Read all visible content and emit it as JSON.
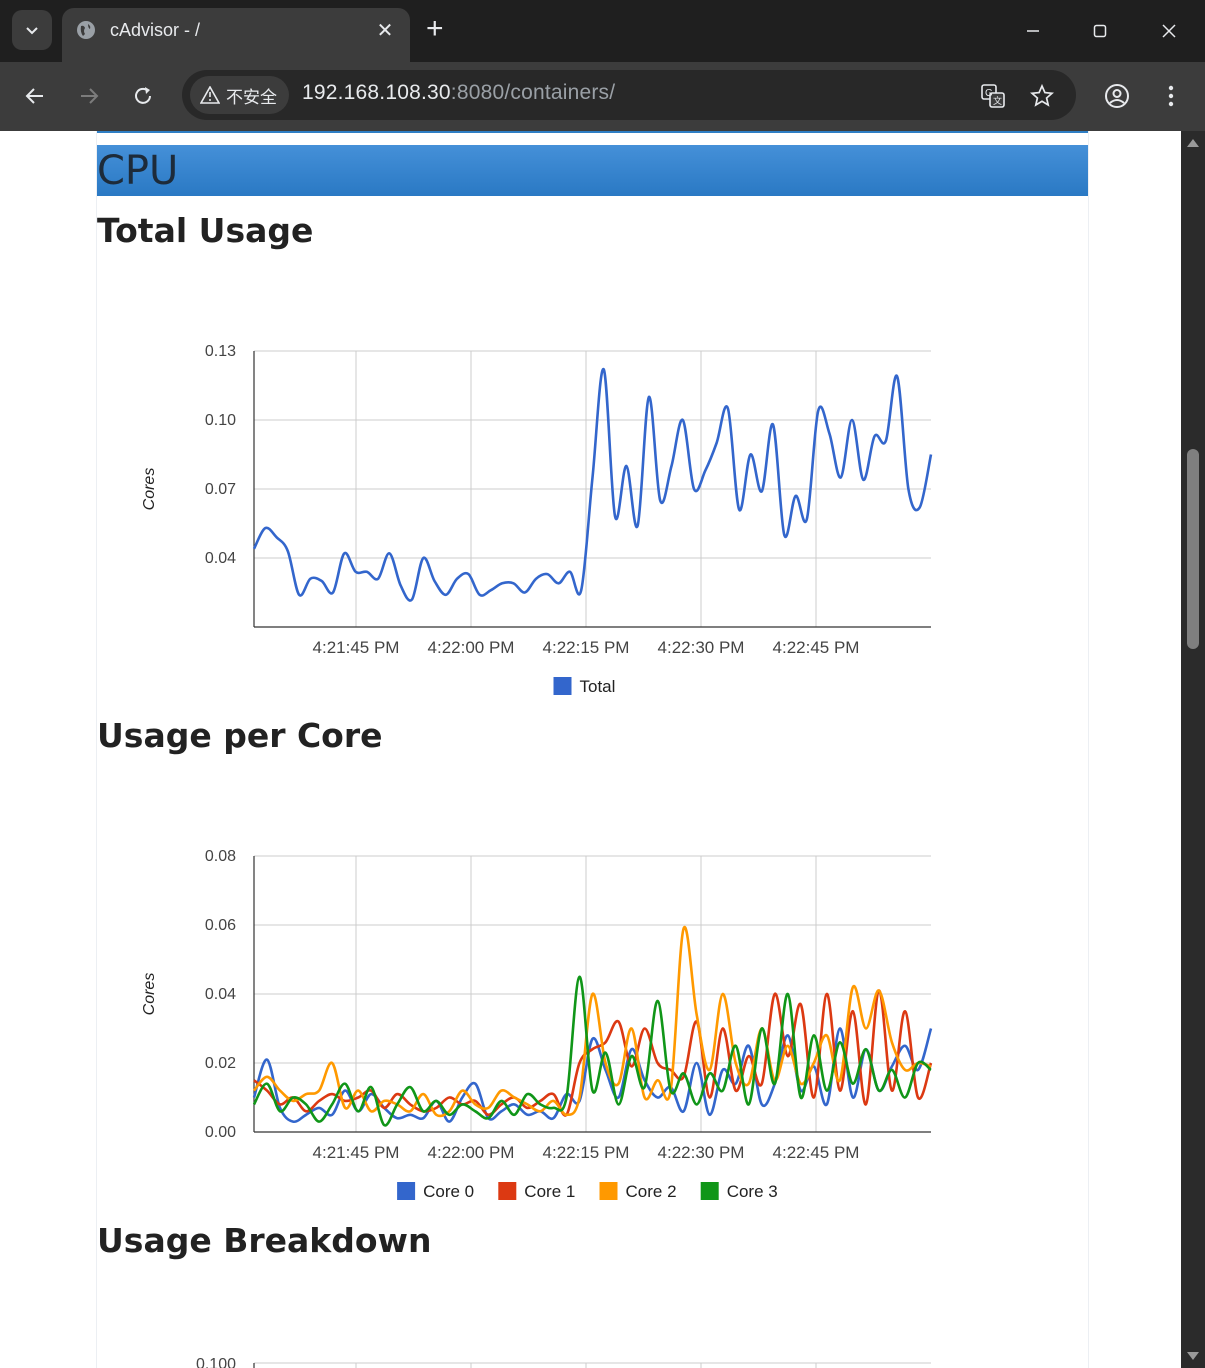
{
  "browser": {
    "tab_title": "cAdvisor - /",
    "new_tab_symbol": "+",
    "security_label": "不安全",
    "url_host": "192.168.108.30",
    "url_rest": ":8080/containers/"
  },
  "page": {
    "section_title": "CPU",
    "total_usage_heading": "Total Usage",
    "per_core_heading": "Usage per Core",
    "breakdown_heading": "Usage Breakdown"
  },
  "chart_data": [
    {
      "type": "line",
      "title": "",
      "xlabel": "",
      "ylabel": "Cores",
      "x_ticks": [
        "4:21:45 PM",
        "4:22:00 PM",
        "4:22:15 PM",
        "4:22:30 PM",
        "4:22:45 PM"
      ],
      "y_ticks": [
        "0.13",
        "0.10",
        "0.07",
        "0.04"
      ],
      "ylim": [
        0.01,
        0.13
      ],
      "x_seconds_range": [
        "4:21:32 PM",
        "4:22:58 PM"
      ],
      "grid": true,
      "legend": "bottom",
      "series": [
        {
          "name": "Total",
          "color": "#3366cc",
          "values": [
            0.044,
            0.053,
            0.049,
            0.043,
            0.024,
            0.031,
            0.03,
            0.025,
            0.042,
            0.034,
            0.034,
            0.031,
            0.042,
            0.028,
            0.022,
            0.04,
            0.03,
            0.024,
            0.031,
            0.033,
            0.024,
            0.026,
            0.029,
            0.029,
            0.025,
            0.031,
            0.033,
            0.029,
            0.034,
            0.026,
            0.075,
            0.122,
            0.058,
            0.08,
            0.054,
            0.11,
            0.065,
            0.08,
            0.1,
            0.07,
            0.078,
            0.09,
            0.105,
            0.061,
            0.085,
            0.069,
            0.098,
            0.05,
            0.067,
            0.057,
            0.104,
            0.094,
            0.075,
            0.1,
            0.074,
            0.093,
            0.091,
            0.119,
            0.07,
            0.062,
            0.085
          ]
        }
      ]
    },
    {
      "type": "line",
      "title": "",
      "xlabel": "",
      "ylabel": "Cores",
      "x_ticks": [
        "4:21:45 PM",
        "4:22:00 PM",
        "4:22:15 PM",
        "4:22:30 PM",
        "4:22:45 PM"
      ],
      "y_ticks": [
        "0.08",
        "0.06",
        "0.04",
        "0.02",
        "0.00"
      ],
      "ylim": [
        0,
        0.08
      ],
      "grid": true,
      "legend": "bottom",
      "series": [
        {
          "name": "Core 0",
          "color": "#3366cc",
          "values": [
            0.01,
            0.021,
            0.007,
            0.003,
            0.005,
            0.007,
            0.005,
            0.012,
            0.006,
            0.011,
            0.007,
            0.004,
            0.005,
            0.004,
            0.009,
            0.003,
            0.01,
            0.014,
            0.004,
            0.006,
            0.008,
            0.005,
            0.006,
            0.004,
            0.011,
            0.009,
            0.027,
            0.018,
            0.01,
            0.024,
            0.015,
            0.01,
            0.013,
            0.006,
            0.02,
            0.005,
            0.018,
            0.014,
            0.025,
            0.008,
            0.014,
            0.028,
            0.012,
            0.019,
            0.008,
            0.03,
            0.01,
            0.024,
            0.012,
            0.019,
            0.025,
            0.018,
            0.03
          ]
        },
        {
          "name": "Core 1",
          "color": "#dc3912",
          "values": [
            0.015,
            0.012,
            0.008,
            0.01,
            0.006,
            0.009,
            0.011,
            0.009,
            0.01,
            0.012,
            0.007,
            0.011,
            0.008,
            0.006,
            0.007,
            0.01,
            0.008,
            0.009,
            0.005,
            0.008,
            0.01,
            0.007,
            0.009,
            0.011,
            0.005,
            0.02,
            0.024,
            0.026,
            0.032,
            0.019,
            0.03,
            0.02,
            0.018,
            0.016,
            0.032,
            0.01,
            0.03,
            0.012,
            0.022,
            0.014,
            0.04,
            0.022,
            0.037,
            0.01,
            0.04,
            0.012,
            0.035,
            0.008,
            0.041,
            0.012,
            0.035,
            0.01,
            0.02
          ]
        },
        {
          "name": "Core 2",
          "color": "#ff9900",
          "values": [
            0.012,
            0.016,
            0.012,
            0.009,
            0.011,
            0.012,
            0.02,
            0.007,
            0.012,
            0.006,
            0.009,
            0.008,
            0.006,
            0.011,
            0.005,
            0.006,
            0.012,
            0.008,
            0.007,
            0.012,
            0.01,
            0.008,
            0.006,
            0.009,
            0.005,
            0.01,
            0.04,
            0.02,
            0.014,
            0.03,
            0.01,
            0.015,
            0.012,
            0.059,
            0.034,
            0.018,
            0.04,
            0.02,
            0.014,
            0.03,
            0.015,
            0.025,
            0.014,
            0.02,
            0.028,
            0.015,
            0.042,
            0.03,
            0.041,
            0.026,
            0.018,
            0.02,
            0.019
          ]
        },
        {
          "name": "Core 3",
          "color": "#109618",
          "values": [
            0.008,
            0.014,
            0.006,
            0.01,
            0.008,
            0.003,
            0.008,
            0.014,
            0.006,
            0.013,
            0.002,
            0.008,
            0.013,
            0.006,
            0.009,
            0.005,
            0.008,
            0.006,
            0.004,
            0.009,
            0.005,
            0.011,
            0.008,
            0.007,
            0.01,
            0.045,
            0.012,
            0.023,
            0.008,
            0.022,
            0.013,
            0.038,
            0.012,
            0.017,
            0.008,
            0.017,
            0.012,
            0.025,
            0.008,
            0.03,
            0.014,
            0.04,
            0.01,
            0.028,
            0.012,
            0.026,
            0.014,
            0.024,
            0.012,
            0.018,
            0.01,
            0.02,
            0.018
          ]
        }
      ]
    },
    {
      "type": "line",
      "title": "",
      "xlabel": "",
      "ylabel": "",
      "y_ticks": [
        "0.100"
      ],
      "grid": true,
      "legend": "",
      "series": []
    }
  ]
}
